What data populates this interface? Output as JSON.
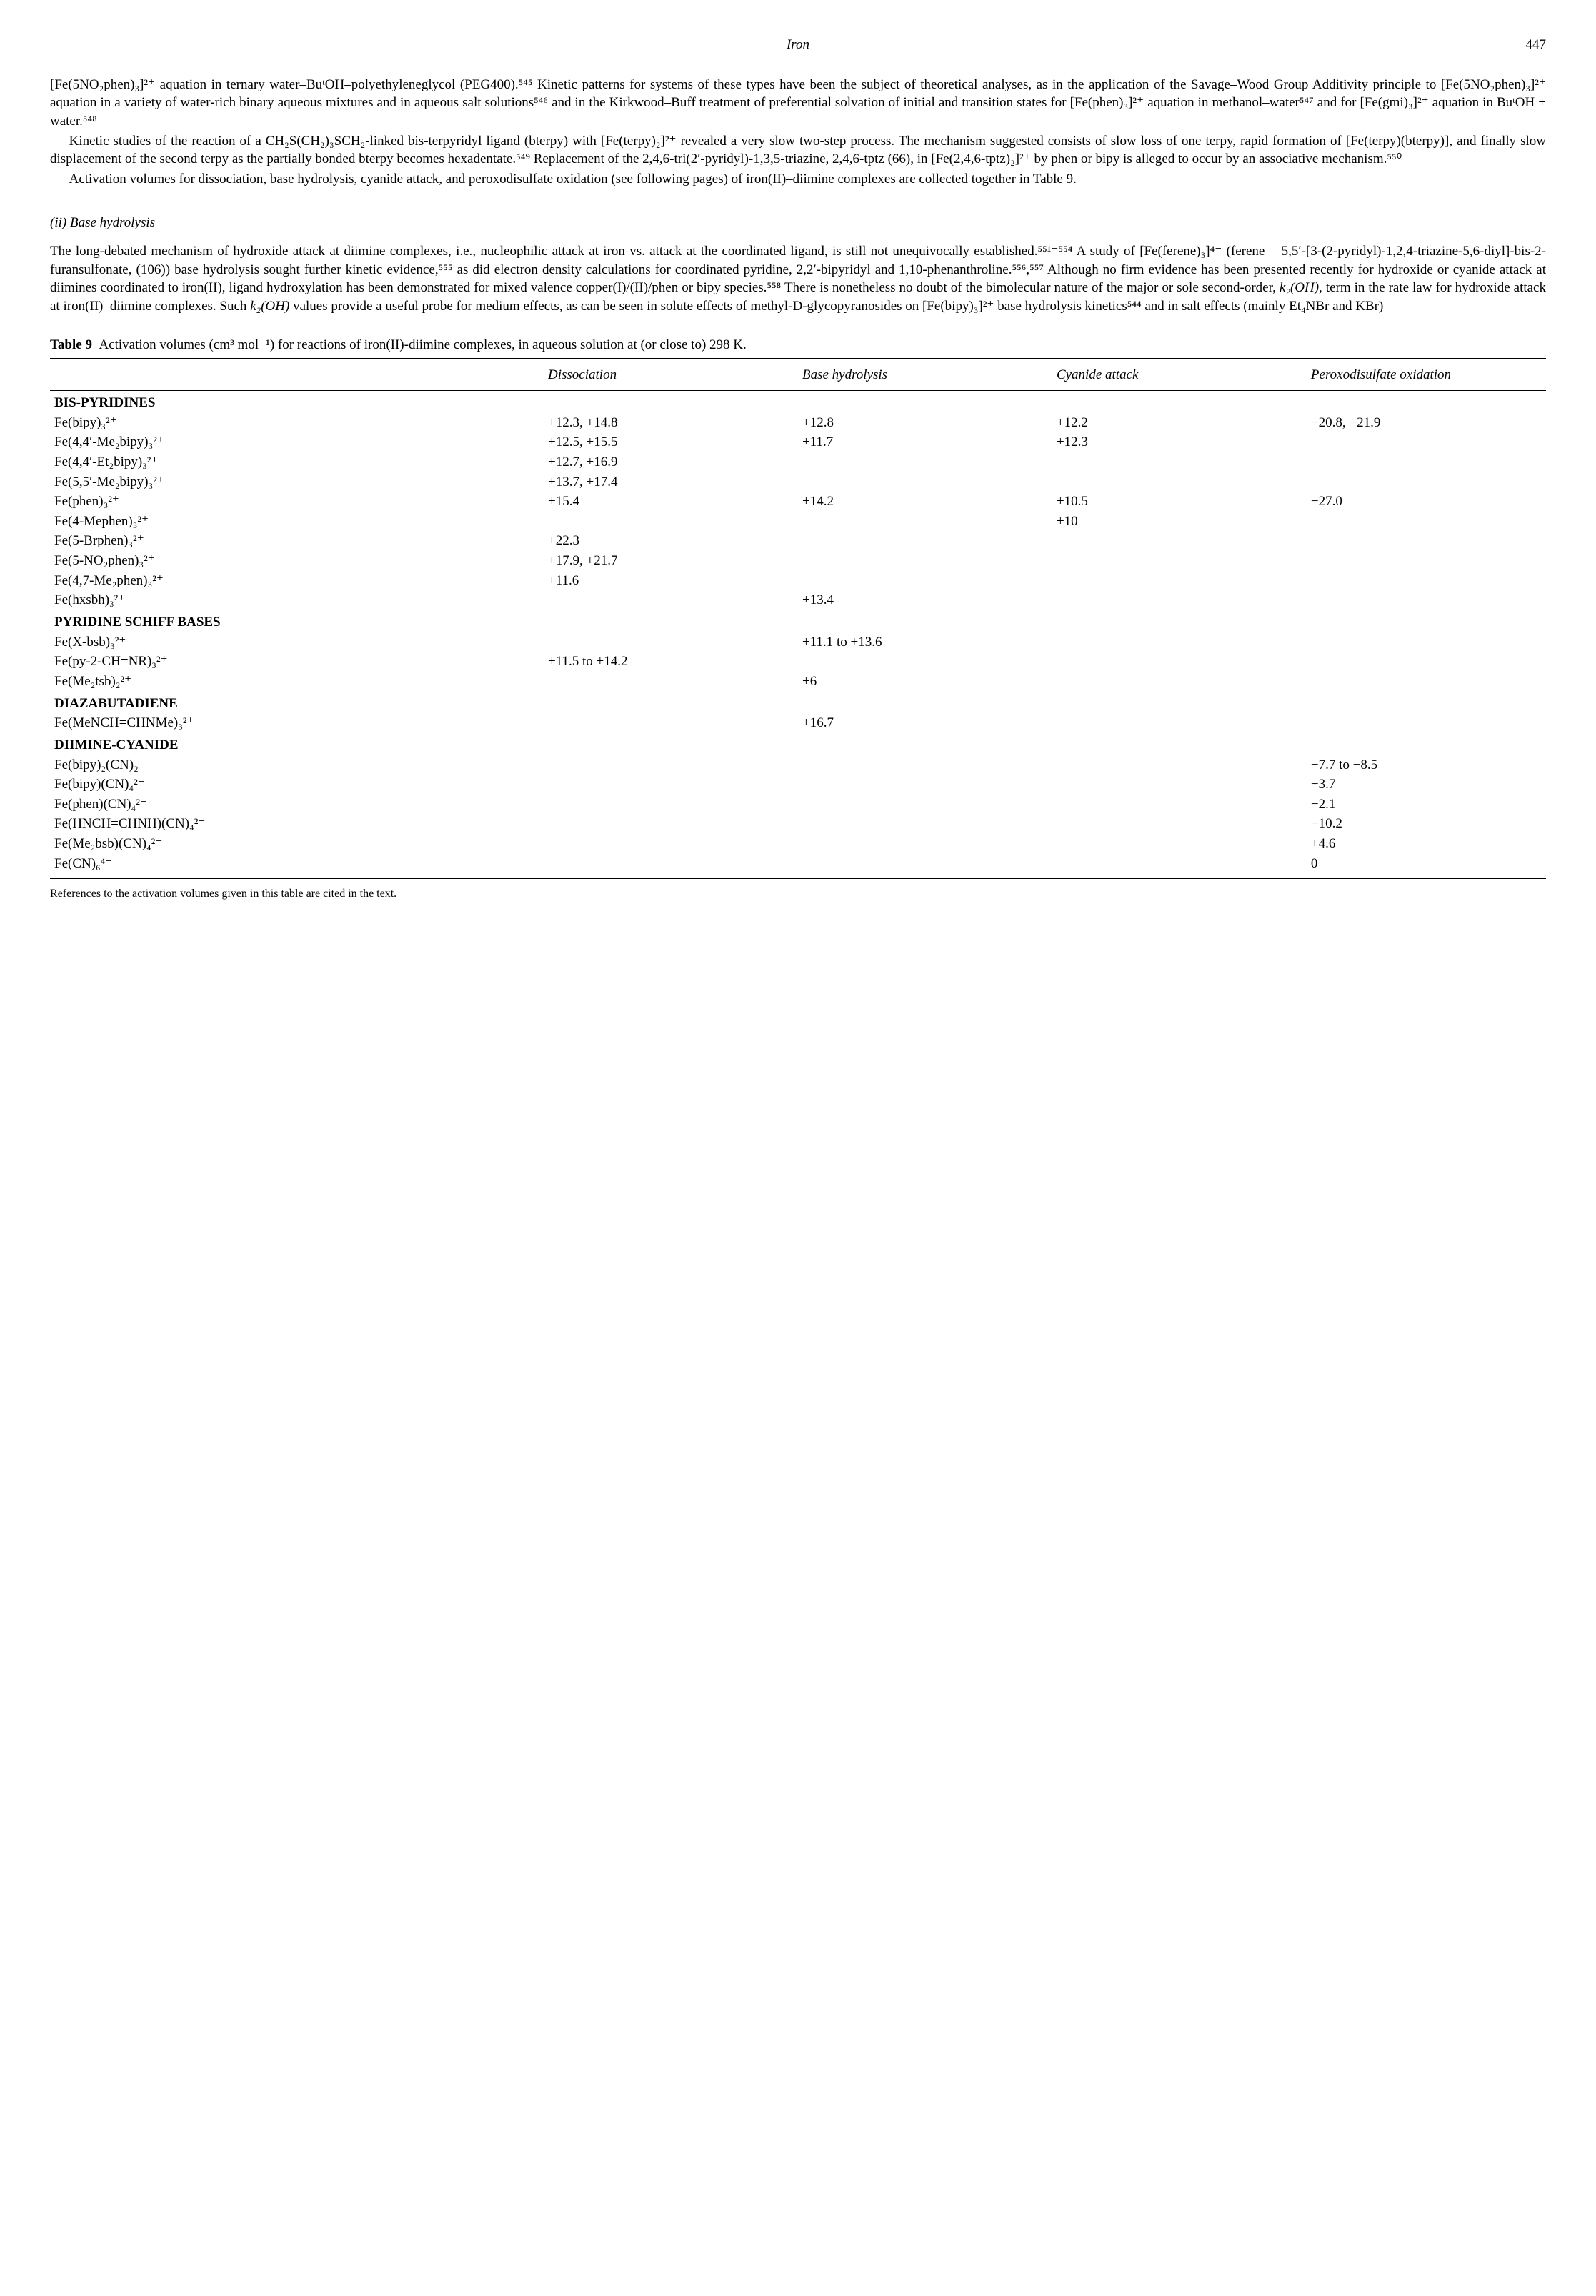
{
  "header": {
    "title": "Iron",
    "page": "447"
  },
  "para1": "[Fe(5NO₂phen)₃]²⁺ aquation in ternary water–BuᵗOH–polyethyleneglycol (PEG400).⁵⁴⁵ Kinetic patterns for systems of these types have been the subject of theoretical analyses, as in the application of the Savage–Wood Group Additivity principle to [Fe(5NO₂phen)₃]²⁺ aquation in a variety of water-rich binary aqueous mixtures and in aqueous salt solutions⁵⁴⁶ and in the Kirkwood–Buff treatment of preferential solvation of initial and transition states for [Fe(phen)₃]²⁺ aquation in methanol–water⁵⁴⁷ and for [Fe(gmi)₃]²⁺ aquation in BuᵗOH + water.⁵⁴⁸",
  "para2": "Kinetic studies of the reaction of a CH₂S(CH₂)₃SCH₂-linked bis-terpyridyl ligand (bterpy) with [Fe(terpy)₂]²⁺ revealed a very slow two-step process. The mechanism suggested consists of slow loss of one terpy, rapid formation of [Fe(terpy)(bterpy)], and finally slow displacement of the second terpy as the partially bonded bterpy becomes hexadentate.⁵⁴⁹ Replacement of the 2,4,6-tri(2′-pyridyl)-1,3,5-triazine, 2,4,6-tptz (66), in [Fe(2,4,6-tptz)₂]²⁺ by phen or bipy is alleged to occur by an associative mechanism.⁵⁵⁰",
  "para3": "Activation volumes for dissociation, base hydrolysis, cyanide attack, and peroxodisulfate oxidation (see following pages) of iron(II)–diimine complexes are collected together in Table 9.",
  "section_heading": "(ii)  Base hydrolysis",
  "para4_a": "The long-debated mechanism of hydroxide attack at diimine complexes, i.e., nucleophilic attack at iron vs. attack at the coordinated ligand, is still not unequivocally established.⁵⁵¹⁻⁵⁵⁴ A study of [Fe(ferene)₃]⁴⁻ (ferene = 5,5′-[3-(2-pyridyl)-1,2,4-triazine-5,6-diyl]-bis-2-furansulfonate, (106)) base hydrolysis sought further kinetic evidence,⁵⁵⁵ as did electron density calculations for coordinated pyridine, 2,2′-bipyridyl and 1,10-phenanthroline.⁵⁵⁶,⁵⁵⁷ Although no firm evidence has been presented recently for hydroxide or cyanide attack at diimines coordinated to iron(II), ligand hydroxylation has been demonstrated for mixed valence copper(I)/(II)/phen or bipy species.⁵⁵⁸ There is nonetheless no doubt of the bimolecular nature of the major or sole second-order, ",
  "para4_b": ", term in the rate law for hydroxide attack at iron(II)–diimine complexes. Such ",
  "para4_c": " values provide a useful probe for medium effects, as can be seen in solute effects of methyl-D-glycopyranosides on [Fe(bipy)₃]²⁺ base hydrolysis kinetics⁵⁴⁴ and in salt effects (mainly Et₄NBr and KBr)",
  "k2oh": "k₂(OH)",
  "table": {
    "caption_label": "Table 9",
    "caption_text": "Activation volumes (cm³ mol⁻¹) for reactions of iron(II)-diimine complexes, in aqueous solution at (or close to) 298 K.",
    "headers": [
      "",
      "Dissociation",
      "Base hydrolysis",
      "Cyanide attack",
      "Peroxodisulfate oxidation"
    ],
    "rows": [
      {
        "section": "BIS-PYRIDINES"
      },
      {
        "name": "Fe(bipy)₃²⁺",
        "c1": "+12.3, +14.8",
        "c2": "+12.8",
        "c3": "+12.2",
        "c4": "−20.8, −21.9"
      },
      {
        "name": "Fe(4,4′-Me₂bipy)₃²⁺",
        "c1": "+12.5, +15.5",
        "c2": "+11.7",
        "c3": "+12.3",
        "c4": ""
      },
      {
        "name": "Fe(4,4′-Et₂bipy)₃²⁺",
        "c1": "+12.7, +16.9",
        "c2": "",
        "c3": "",
        "c4": ""
      },
      {
        "name": "Fe(5,5′-Me₂bipy)₃²⁺",
        "c1": "+13.7, +17.4",
        "c2": "",
        "c3": "",
        "c4": ""
      },
      {
        "name": "Fe(phen)₃²⁺",
        "c1": "+15.4",
        "c2": "+14.2",
        "c3": "+10.5",
        "c4": "−27.0"
      },
      {
        "name": "Fe(4-Mephen)₃²⁺",
        "c1": "",
        "c2": "",
        "c3": "+10",
        "c4": ""
      },
      {
        "name": "Fe(5-Brphen)₃²⁺",
        "c1": "+22.3",
        "c2": "",
        "c3": "",
        "c4": ""
      },
      {
        "name": "Fe(5-NO₂phen)₃²⁺",
        "c1": "+17.9, +21.7",
        "c2": "",
        "c3": "",
        "c4": ""
      },
      {
        "name": "Fe(4,7-Me₂phen)₃²⁺",
        "c1": "+11.6",
        "c2": "",
        "c3": "",
        "c4": ""
      },
      {
        "name": "Fe(hxsbh)₃²⁺",
        "c1": "",
        "c2": "+13.4",
        "c3": "",
        "c4": ""
      },
      {
        "section": "PYRIDINE SCHIFF BASES"
      },
      {
        "name": "Fe(X-bsb)₃²⁺",
        "c1": "",
        "c2": "+11.1 to +13.6",
        "c3": "",
        "c4": ""
      },
      {
        "name": "Fe(py-2-CH=NR)₃²⁺",
        "c1": "+11.5 to +14.2",
        "c2": "",
        "c3": "",
        "c4": ""
      },
      {
        "name": "Fe(Me₂tsb)₂²⁺",
        "c1": "",
        "c2": "+6",
        "c3": "",
        "c4": ""
      },
      {
        "section": "DIAZABUTADIENE"
      },
      {
        "name": "Fe(MeNCH=CHNMe)₃²⁺",
        "c1": "",
        "c2": "+16.7",
        "c3": "",
        "c4": ""
      },
      {
        "section": "DIIMINE-CYANIDE"
      },
      {
        "name": "Fe(bipy)₂(CN)₂",
        "c1": "",
        "c2": "",
        "c3": "",
        "c4": "−7.7 to −8.5"
      },
      {
        "name": "Fe(bipy)(CN)₄²⁻",
        "c1": "",
        "c2": "",
        "c3": "",
        "c4": "−3.7"
      },
      {
        "name": "Fe(phen)(CN)₄²⁻",
        "c1": "",
        "c2": "",
        "c3": "",
        "c4": "−2.1"
      },
      {
        "name": "Fe(HNCH=CHNH)(CN)₄²⁻",
        "c1": "",
        "c2": "",
        "c3": "",
        "c4": "−10.2"
      },
      {
        "name": "Fe(Me₂bsb)(CN)₄²⁻",
        "c1": "",
        "c2": "",
        "c3": "",
        "c4": "+4.6"
      },
      {
        "name": "Fe(CN)₆⁴⁻",
        "c1": "",
        "c2": "",
        "c3": "",
        "c4": "0"
      }
    ]
  },
  "footnote": "References to the activation volumes given in this table are cited in the text."
}
